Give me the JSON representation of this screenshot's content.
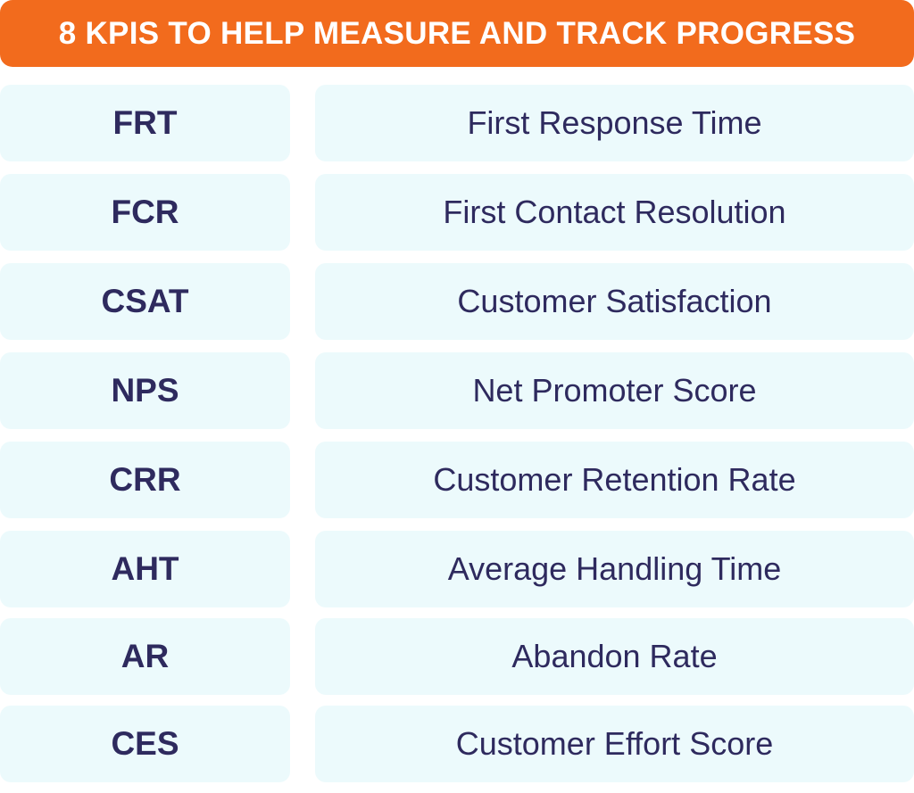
{
  "header": {
    "title": "8 KPIS TO HELP MEASURE AND TRACK PROGRESS"
  },
  "kpis": [
    {
      "abbr": "FRT",
      "name": "First Response Time"
    },
    {
      "abbr": "FCR",
      "name": "First Contact Resolution"
    },
    {
      "abbr": "CSAT",
      "name": "Customer Satisfaction"
    },
    {
      "abbr": "NPS",
      "name": "Net Promoter Score"
    },
    {
      "abbr": "CRR",
      "name": "Customer Retention Rate"
    },
    {
      "abbr": "AHT",
      "name": "Average Handling Time"
    },
    {
      "abbr": "AR",
      "name": "Abandon Rate"
    },
    {
      "abbr": "CES",
      "name": "Customer Effort Score"
    }
  ],
  "colors": {
    "header_bg": "#F26B1D",
    "header_text": "#FFFFFF",
    "cell_bg": "#ECFAFC",
    "cell_text": "#2E2A5E"
  }
}
